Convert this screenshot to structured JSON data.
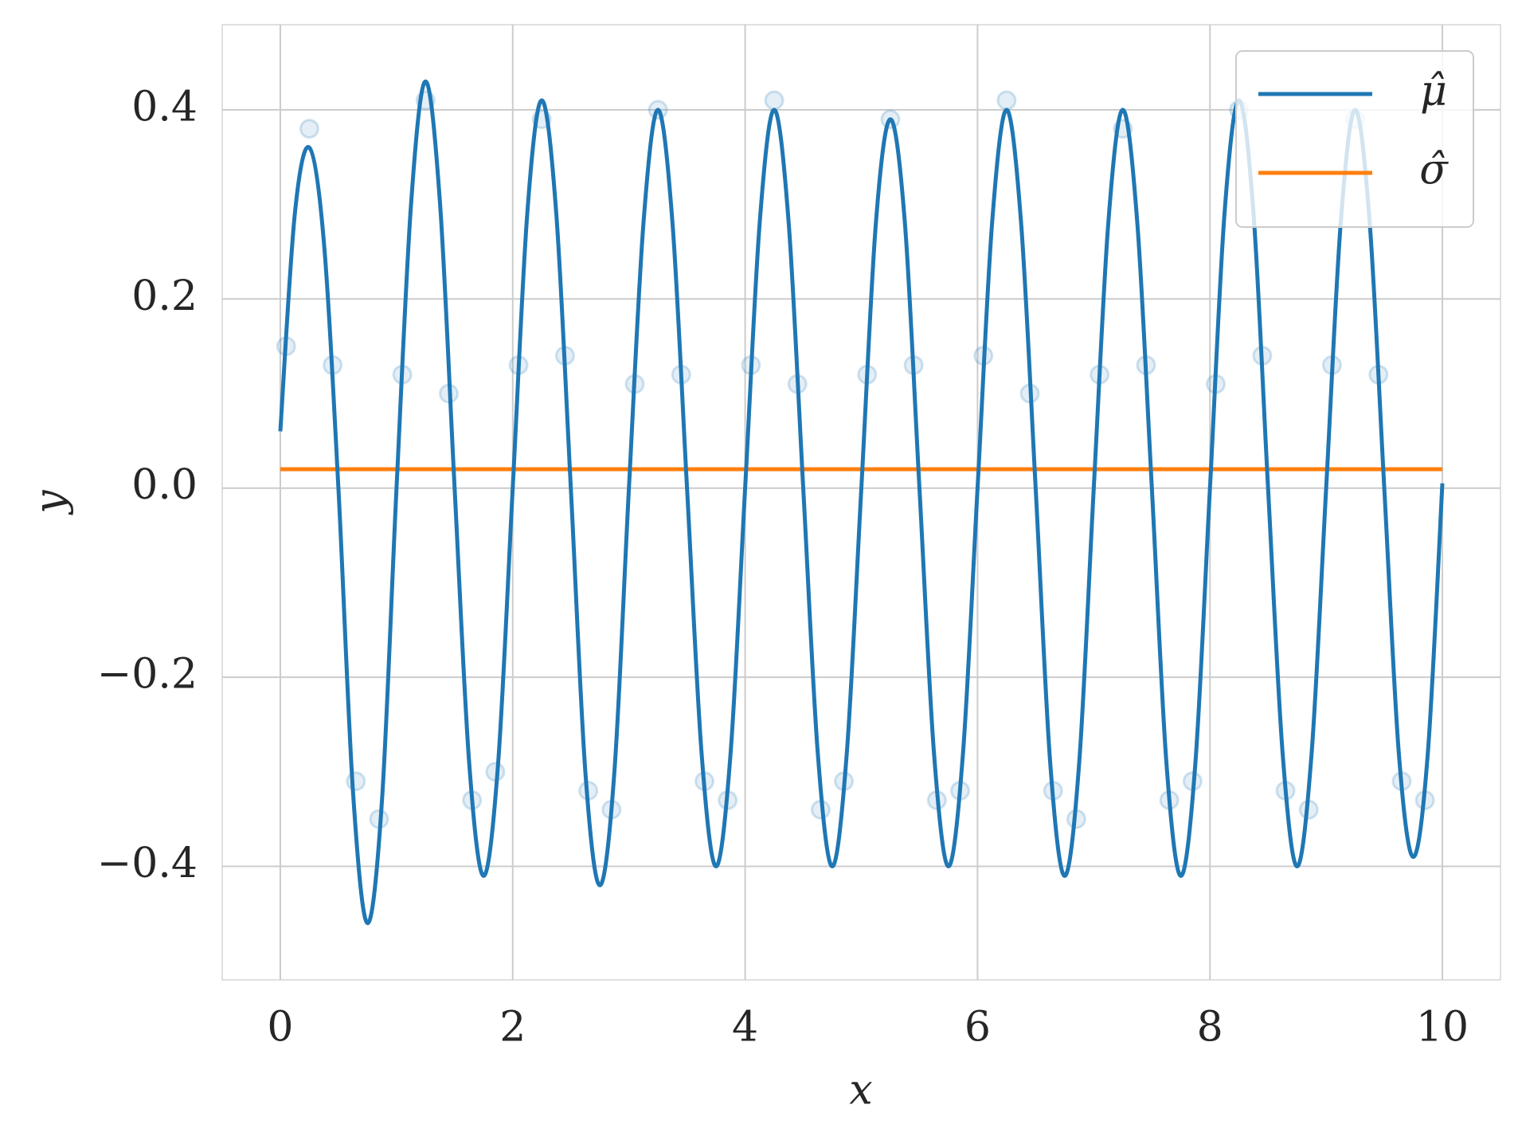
{
  "chart_data": {
    "type": "line",
    "xlabel": "x",
    "ylabel": "y",
    "xlim": [
      -0.5,
      10.5
    ],
    "ylim": [
      -0.52,
      0.49
    ],
    "xticks": [
      0,
      2,
      4,
      6,
      8,
      10
    ],
    "yticks": [
      {
        "value": -0.4,
        "label": "−0.4"
      },
      {
        "value": -0.2,
        "label": "−0.2"
      },
      {
        "value": 0,
        "label": "0.0"
      },
      0.2,
      0.4
    ],
    "grid": true,
    "legend": "upper right",
    "x": [
      0,
      0.125,
      0.25,
      0.375,
      0.5,
      0.625,
      0.75,
      0.875,
      1,
      1.125,
      1.25,
      1.375,
      1.5,
      1.625,
      1.75,
      1.875,
      2,
      2.125,
      2.25,
      2.375,
      2.5,
      2.625,
      2.75,
      2.875,
      3,
      3.125,
      3.25,
      3.375,
      3.5,
      3.625,
      3.75,
      3.875,
      4,
      4.125,
      4.25,
      4.375,
      4.5,
      4.625,
      4.75,
      4.875,
      5,
      5.125,
      5.25,
      5.375,
      5.5,
      5.625,
      5.75,
      5.875,
      6,
      6.125,
      6.25,
      6.375,
      6.5,
      6.625,
      6.75,
      6.875,
      7,
      7.125,
      7.25,
      7.375,
      7.5,
      7.625,
      7.75,
      7.875,
      8,
      8.125,
      8.25,
      8.375,
      8.5,
      8.625,
      8.75,
      8.875,
      9,
      9.125,
      9.25,
      9.375,
      9.5,
      9.625,
      9.75,
      9.875,
      10
    ],
    "series": [
      {
        "name": "μ̂",
        "color": "#1f77b4",
        "values": [
          0.06,
          0.29,
          0.36,
          0.26,
          0.0,
          -0.32,
          -0.46,
          -0.33,
          0.0,
          0.3,
          0.43,
          0.3,
          0.0,
          -0.29,
          -0.41,
          -0.29,
          0.0,
          0.29,
          0.41,
          0.29,
          0.0,
          -0.3,
          -0.42,
          -0.3,
          0.0,
          0.28,
          0.4,
          0.28,
          0.0,
          -0.28,
          -0.4,
          -0.28,
          0.0,
          0.28,
          0.4,
          0.28,
          0.0,
          -0.28,
          -0.4,
          -0.28,
          0.0,
          0.28,
          0.39,
          0.28,
          0.0,
          -0.28,
          -0.4,
          -0.28,
          0.0,
          0.28,
          0.4,
          0.28,
          0.0,
          -0.29,
          -0.41,
          -0.29,
          0.0,
          0.28,
          0.4,
          0.28,
          0.0,
          -0.29,
          -0.41,
          -0.29,
          0.0,
          0.29,
          0.41,
          0.29,
          0.0,
          -0.28,
          -0.4,
          -0.28,
          0.0,
          0.28,
          0.4,
          0.28,
          0.0,
          -0.28,
          -0.39,
          -0.28,
          0.005
        ]
      },
      {
        "name": "σ̂",
        "color": "#ff7f0e",
        "x": [
          0,
          10
        ],
        "values": [
          0.02,
          0.02
        ]
      }
    ],
    "scatter": {
      "color": "#1f77b4",
      "x": [
        0.05,
        0.25,
        0.45,
        0.65,
        0.85,
        1.05,
        1.25,
        1.45,
        1.65,
        1.85,
        2.05,
        2.25,
        2.45,
        2.65,
        2.85,
        3.05,
        3.25,
        3.45,
        3.65,
        3.85,
        4.05,
        4.25,
        4.45,
        4.65,
        4.85,
        5.05,
        5.25,
        5.45,
        5.65,
        5.85,
        6.05,
        6.25,
        6.45,
        6.65,
        6.85,
        7.05,
        7.25,
        7.45,
        7.65,
        7.85,
        8.05,
        8.25,
        8.45,
        8.65,
        8.85,
        9.05,
        9.25,
        9.45,
        9.65,
        9.85
      ],
      "values": [
        0.15,
        0.38,
        0.13,
        -0.31,
        -0.35,
        0.12,
        0.41,
        0.1,
        -0.33,
        -0.3,
        0.13,
        0.39,
        0.14,
        -0.32,
        -0.34,
        0.11,
        0.4,
        0.12,
        -0.31,
        -0.33,
        0.13,
        0.41,
        0.11,
        -0.34,
        -0.31,
        0.12,
        0.39,
        0.13,
        -0.33,
        -0.32,
        0.14,
        0.41,
        0.1,
        -0.32,
        -0.35,
        0.12,
        0.38,
        0.13,
        -0.33,
        -0.31,
        0.11,
        0.4,
        0.14,
        -0.32,
        -0.34,
        0.13,
        0.39,
        0.12,
        -0.31,
        -0.33
      ]
    }
  }
}
